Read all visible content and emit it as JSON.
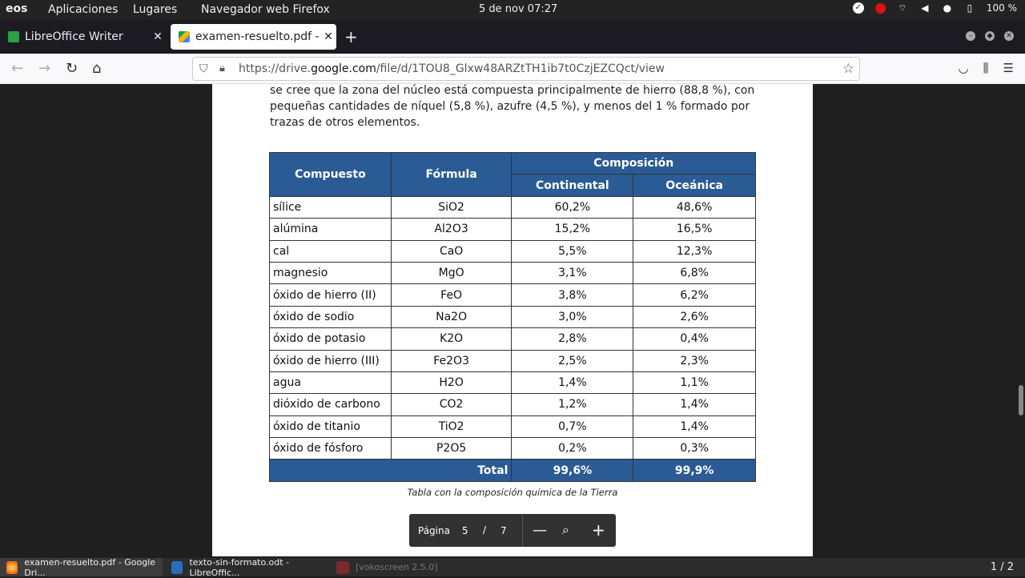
{
  "system_bar": {
    "logo": "eos",
    "menu": [
      "Aplicaciones",
      "Lugares",
      "Navegador web Firefox"
    ],
    "clock": "5 de nov  07:27",
    "battery": "100 %"
  },
  "tabs": [
    {
      "title": "LibreOffice Writer",
      "favicon_color": "#2e9e48"
    },
    {
      "title": "examen-resuelto.pdf - Go",
      "favicon_color": "#f4b400"
    }
  ],
  "url": {
    "prefix": "https://drive.",
    "domain": "google.com",
    "path": "/file/d/1TOU8_Glxw48ARZtTH1ib7t0CzjEZCQct/view"
  },
  "document": {
    "paragraph": [
      "se cree que la zona del núcleo está compuesta principalmente de hierro (88,8 %), con",
      "pequeñas cantidades de níquel (5,8 %), azufre (4,5 %), y menos del 1 % formado por",
      "trazas de otros elementos."
    ],
    "table": {
      "header_compuesto": "Compuesto",
      "header_formula": "Fórmula",
      "header_composicion": "Composición",
      "header_continental": "Continental",
      "header_oceanica": "Oceánica",
      "rows": [
        {
          "compuesto": "sílice",
          "formula": "SiO2",
          "continental": "60,2%",
          "oceanica": "48,6%"
        },
        {
          "compuesto": "alúmina",
          "formula": "Al2O3",
          "continental": "15,2%",
          "oceanica": "16,5%"
        },
        {
          "compuesto": "cal",
          "formula": "CaO",
          "continental": "5,5%",
          "oceanica": "12,3%"
        },
        {
          "compuesto": "magnesio",
          "formula": "MgO",
          "continental": "3,1%",
          "oceanica": "6,8%"
        },
        {
          "compuesto": "óxido de hierro (II)",
          "formula": "FeO",
          "continental": "3,8%",
          "oceanica": "6,2%"
        },
        {
          "compuesto": "óxido de sodio",
          "formula": "Na2O",
          "continental": "3,0%",
          "oceanica": "2,6%"
        },
        {
          "compuesto": "óxido de potasio",
          "formula": "K2O",
          "continental": "2,8%",
          "oceanica": "0,4%"
        },
        {
          "compuesto": "óxido de hierro (III)",
          "formula": "Fe2O3",
          "continental": "2,5%",
          "oceanica": "2,3%"
        },
        {
          "compuesto": "agua",
          "formula": "H2O",
          "continental": "1,4%",
          "oceanica": "1,1%"
        },
        {
          "compuesto": "dióxido de carbono",
          "formula": "CO2",
          "continental": "1,2%",
          "oceanica": "1,4%"
        },
        {
          "compuesto": "óxido de titanio",
          "formula": "TiO2",
          "continental": "0,7%",
          "oceanica": "1,4%"
        },
        {
          "compuesto": "óxido de fósforo",
          "formula": "P2O5",
          "continental": "0,2%",
          "oceanica": "0,3%"
        }
      ],
      "total_label": "Total",
      "total_continental": "99,6%",
      "total_oceanica": "99,9%"
    },
    "caption": "Tabla con la composición química de la Tierra"
  },
  "page_control": {
    "label": "Página",
    "current": "5",
    "separator": "/",
    "total": "7"
  },
  "taskbar": {
    "items": [
      {
        "label": "examen-resuelto.pdf - Google Dri..."
      },
      {
        "label": "texto-sin-formato.odt - LibreOffic..."
      },
      {
        "label": "[vokoscreen 2.5.0]"
      }
    ],
    "workspace": "1 / 2"
  }
}
